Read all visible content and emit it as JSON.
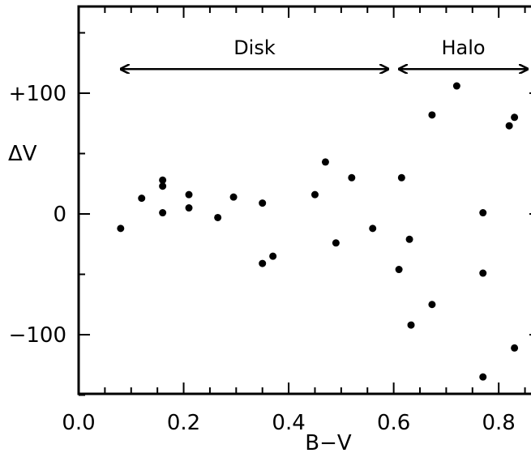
{
  "chart_data": {
    "type": "scatter",
    "title": "",
    "xlabel": "B−V",
    "ylabel": "ΔV",
    "xlim": [
      0.0,
      0.88
    ],
    "ylim": [
      -150,
      170
    ],
    "grid": false,
    "legend": "none",
    "x_ticks": [
      {
        "value": 0.0,
        "label": "0.0"
      },
      {
        "value": 0.2,
        "label": "0.2"
      },
      {
        "value": 0.4,
        "label": "0.4"
      },
      {
        "value": 0.6,
        "label": "0.6"
      },
      {
        "value": 0.8,
        "label": "0.8"
      }
    ],
    "y_ticks": [
      {
        "value": 100,
        "label": "+100"
      },
      {
        "value": 0,
        "label": "0"
      },
      {
        "value": -100,
        "label": "−100"
      }
    ],
    "annotations": [
      {
        "text": "Disk",
        "x_from": 0.08,
        "x_to": 0.59,
        "y": 120
      },
      {
        "text": "Halo",
        "x_from": 0.61,
        "x_to": 0.88,
        "y": 120
      }
    ],
    "series": [
      {
        "color": "#000000",
        "points": [
          {
            "x": 0.08,
            "y": -12
          },
          {
            "x": 0.12,
            "y": 13
          },
          {
            "x": 0.16,
            "y": 28
          },
          {
            "x": 0.16,
            "y": 23
          },
          {
            "x": 0.16,
            "y": 1
          },
          {
            "x": 0.21,
            "y": 16
          },
          {
            "x": 0.21,
            "y": 5
          },
          {
            "x": 0.265,
            "y": -3
          },
          {
            "x": 0.295,
            "y": 14
          },
          {
            "x": 0.35,
            "y": 9
          },
          {
            "x": 0.35,
            "y": -41
          },
          {
            "x": 0.37,
            "y": -35
          },
          {
            "x": 0.45,
            "y": 16
          },
          {
            "x": 0.47,
            "y": 43
          },
          {
            "x": 0.49,
            "y": -24
          },
          {
            "x": 0.52,
            "y": 30
          },
          {
            "x": 0.56,
            "y": -12
          },
          {
            "x": 0.61,
            "y": -46
          },
          {
            "x": 0.615,
            "y": 30
          },
          {
            "x": 0.63,
            "y": -21
          },
          {
            "x": 0.633,
            "y": -92
          },
          {
            "x": 0.673,
            "y": 82
          },
          {
            "x": 0.673,
            "y": -75
          },
          {
            "x": 0.72,
            "y": 106
          },
          {
            "x": 0.77,
            "y": 1
          },
          {
            "x": 0.77,
            "y": -49
          },
          {
            "x": 0.77,
            "y": -135
          },
          {
            "x": 0.82,
            "y": 73
          },
          {
            "x": 0.83,
            "y": 80
          },
          {
            "x": 0.83,
            "y": -111
          }
        ]
      }
    ]
  }
}
